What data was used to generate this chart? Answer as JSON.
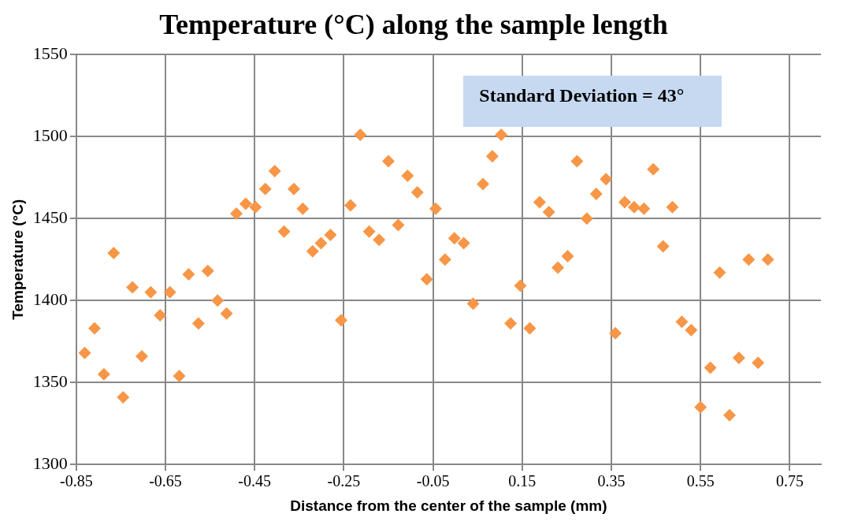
{
  "chart_data": {
    "type": "scatter",
    "title": "Temperature (°C) along the sample length",
    "xlabel": "Distance from the center of the sample (mm)",
    "ylabel": "Temperature (°C)",
    "annotations": [
      "Standard Deviation = 43°"
    ],
    "x": [
      -0.831,
      -0.809,
      -0.788,
      -0.766,
      -0.745,
      -0.724,
      -0.703,
      -0.683,
      -0.662,
      -0.64,
      -0.619,
      -0.598,
      -0.576,
      -0.555,
      -0.533,
      -0.513,
      -0.491,
      -0.47,
      -0.448,
      -0.426,
      -0.405,
      -0.384,
      -0.362,
      -0.342,
      -0.32,
      -0.301,
      -0.28,
      -0.256,
      -0.235,
      -0.213,
      -0.193,
      -0.171,
      -0.15,
      -0.128,
      -0.107,
      -0.085,
      -0.064,
      -0.044,
      -0.023,
      -0.002,
      0.019,
      0.04,
      0.062,
      0.083,
      0.103,
      0.124,
      0.146,
      0.167,
      0.189,
      0.21,
      0.23,
      0.252,
      0.273,
      0.295,
      0.316,
      0.338,
      0.359,
      0.38,
      0.401,
      0.423,
      0.444,
      0.466,
      0.487,
      0.508,
      0.529,
      0.55,
      0.572,
      0.593,
      0.615,
      0.636,
      0.658,
      0.679,
      0.701
    ],
    "series": [
      {
        "color": "#f79646",
        "values": [
          1368,
          1383,
          1355,
          1429,
          1341,
          1408,
          1366,
          1405,
          1391,
          1405,
          1354,
          1416,
          1386,
          1418,
          1400,
          1392,
          1453,
          1459,
          1457,
          1468,
          1479,
          1442,
          1468,
          1456,
          1430,
          1435,
          1440,
          1388,
          1458,
          1501,
          1442,
          1437,
          1485,
          1446,
          1476,
          1466,
          1413,
          1456,
          1425,
          1438,
          1435,
          1398,
          1471,
          1488,
          1501,
          1386,
          1409,
          1383,
          1460,
          1454,
          1420,
          1427,
          1485,
          1450,
          1465,
          1474,
          1380,
          1460,
          1457,
          1456,
          1480,
          1433,
          1457,
          1387,
          1382,
          1335,
          1359,
          1417,
          1330,
          1365,
          1425,
          1362,
          1425
        ]
      }
    ],
    "xlim": [
      -0.85,
      0.82
    ],
    "xticks": [
      -0.85,
      -0.65,
      -0.45,
      -0.25,
      -0.05,
      0.15,
      0.35,
      0.55,
      0.75
    ],
    "ylim": [
      1300,
      1550
    ],
    "yticks": [
      1300,
      1350,
      1400,
      1450,
      1500,
      1550
    ],
    "grid": true,
    "marker": "diamond",
    "legend": false
  }
}
